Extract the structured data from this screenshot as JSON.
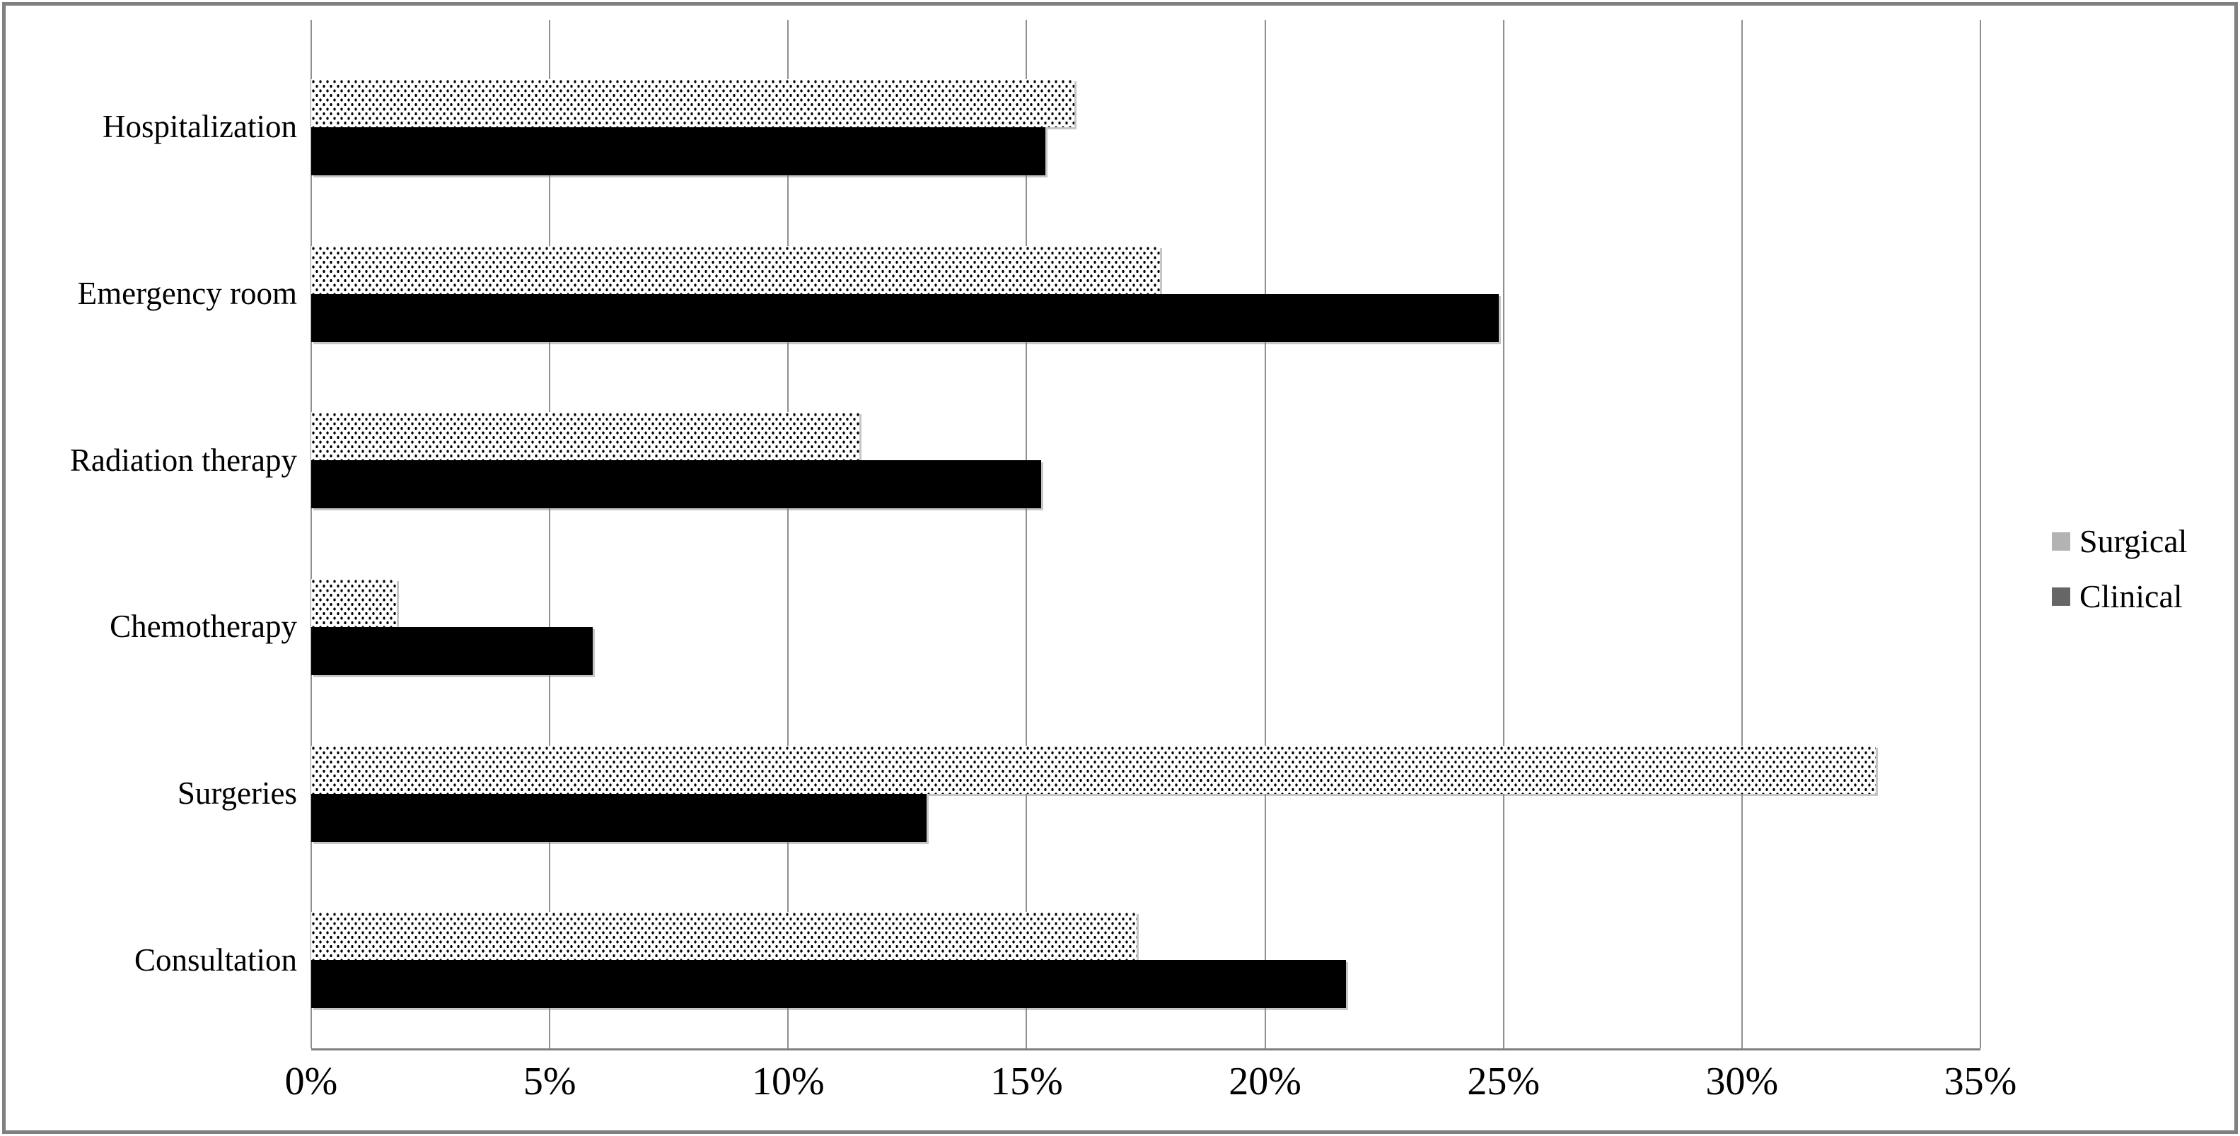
{
  "chart_data": {
    "type": "bar",
    "orientation": "horizontal",
    "title": "",
    "categories": [
      "Hospitalization",
      "Emergency room",
      "Radiation therapy",
      "Chemotherapy",
      "Surgeries",
      "Consultation"
    ],
    "series": [
      {
        "name": "Surgical",
        "values": [
          16.0,
          17.8,
          11.5,
          1.8,
          32.8,
          17.3
        ],
        "fill_style": "dotted-pattern",
        "legend_color": "#b3b3b3"
      },
      {
        "name": "Clinical",
        "values": [
          15.4,
          24.9,
          15.3,
          5.9,
          12.9,
          21.7
        ],
        "fill_style": "solid-black",
        "legend_color": "#666666"
      }
    ],
    "x_axis": {
      "min": 0,
      "max": 35,
      "step": 5,
      "unit": "%",
      "tick_labels": [
        "0%",
        "5%",
        "10%",
        "15%",
        "20%",
        "25%",
        "30%",
        "35%"
      ]
    },
    "y_axis": {
      "label": ""
    },
    "grid": true,
    "gridlines": "vertical",
    "legend_position": "right"
  },
  "colors": {
    "background": "#ffffff",
    "frame_border": "#808080",
    "gridline": "#909090",
    "axis_line": "#808080",
    "clinical_bar": "#000000",
    "surgical_dot": "#000000",
    "surgical_bar_bg": "#ffffff"
  }
}
